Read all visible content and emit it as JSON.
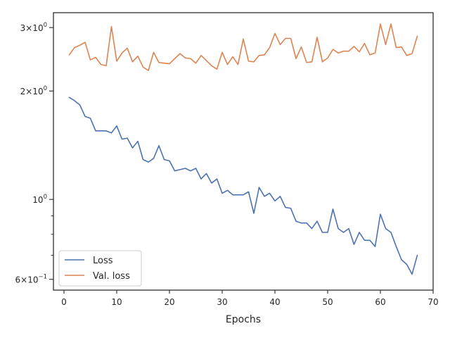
{
  "chart_data": {
    "type": "line",
    "xlabel": "Epochs",
    "ylabel": "",
    "title": "",
    "xlim": [
      -2,
      70
    ],
    "ylim": [
      0.56,
      3.3
    ],
    "yscale": "log",
    "grid": false,
    "legend_position": "lower-left",
    "x_ticks": [
      "0",
      "10",
      "20",
      "30",
      "40",
      "50",
      "60",
      "70"
    ],
    "y_major_ticks": [
      {
        "value": 3,
        "mantissa": "3",
        "exponent": "0"
      },
      {
        "value": 2,
        "mantissa": "2",
        "exponent": "0"
      },
      {
        "value": 1,
        "label": "10",
        "exponent": "0"
      },
      {
        "value": 0.6,
        "mantissa": "6",
        "exponent": "−1"
      }
    ],
    "y_minor_ticks": [
      0.7,
      0.8,
      0.9
    ],
    "series": [
      {
        "name": "Loss",
        "color": "#4c72b0",
        "x": [
          1,
          2,
          3,
          4,
          5,
          6,
          7,
          8,
          9,
          10,
          11,
          12,
          13,
          14,
          15,
          16,
          17,
          18,
          19,
          20,
          21,
          22,
          23,
          24,
          25,
          26,
          27,
          28,
          29,
          30,
          31,
          32,
          33,
          34,
          35,
          36,
          37,
          38,
          39,
          40,
          41,
          42,
          43,
          44,
          45,
          46,
          47,
          48,
          49,
          50,
          51,
          52,
          53,
          54,
          55,
          56,
          57,
          58,
          59,
          60,
          61,
          62,
          63,
          64,
          65,
          66,
          67
        ],
        "values": [
          1.92,
          1.88,
          1.83,
          1.7,
          1.68,
          1.55,
          1.55,
          1.55,
          1.53,
          1.6,
          1.47,
          1.48,
          1.39,
          1.45,
          1.29,
          1.27,
          1.3,
          1.41,
          1.29,
          1.28,
          1.2,
          1.21,
          1.22,
          1.2,
          1.22,
          1.14,
          1.18,
          1.11,
          1.14,
          1.04,
          1.06,
          1.03,
          1.03,
          1.03,
          1.05,
          0.915,
          1.08,
          1.02,
          1.04,
          0.99,
          1.02,
          0.95,
          0.945,
          0.87,
          0.86,
          0.86,
          0.83,
          0.87,
          0.81,
          0.81,
          0.94,
          0.83,
          0.81,
          0.83,
          0.75,
          0.81,
          0.77,
          0.77,
          0.74,
          0.91,
          0.83,
          0.81,
          0.74,
          0.68,
          0.66,
          0.62,
          0.7
        ]
      },
      {
        "name": "Val. loss",
        "color": "#dd8452",
        "x": [
          1,
          2,
          3,
          4,
          5,
          6,
          7,
          8,
          9,
          10,
          11,
          12,
          13,
          14,
          15,
          16,
          17,
          18,
          19,
          20,
          21,
          22,
          23,
          24,
          25,
          26,
          27,
          28,
          29,
          30,
          31,
          32,
          33,
          34,
          35,
          36,
          37,
          38,
          39,
          40,
          41,
          42,
          43,
          44,
          45,
          46,
          47,
          48,
          49,
          50,
          51,
          52,
          53,
          54,
          55,
          56,
          57,
          58,
          59,
          60,
          61,
          62,
          63,
          64,
          65,
          66,
          67
        ],
        "values": [
          2.52,
          2.64,
          2.68,
          2.73,
          2.44,
          2.48,
          2.37,
          2.35,
          3.02,
          2.42,
          2.55,
          2.63,
          2.41,
          2.5,
          2.33,
          2.28,
          2.56,
          2.4,
          2.39,
          2.38,
          2.46,
          2.54,
          2.47,
          2.46,
          2.39,
          2.51,
          2.43,
          2.35,
          2.3,
          2.56,
          2.37,
          2.49,
          2.37,
          2.79,
          2.42,
          2.41,
          2.51,
          2.52,
          2.64,
          2.89,
          2.69,
          2.8,
          2.8,
          2.46,
          2.65,
          2.4,
          2.41,
          2.82,
          2.41,
          2.47,
          2.61,
          2.55,
          2.58,
          2.58,
          2.66,
          2.57,
          2.71,
          2.52,
          2.55,
          3.07,
          2.69,
          3.07,
          2.64,
          2.65,
          2.51,
          2.54,
          2.84
        ]
      }
    ]
  }
}
